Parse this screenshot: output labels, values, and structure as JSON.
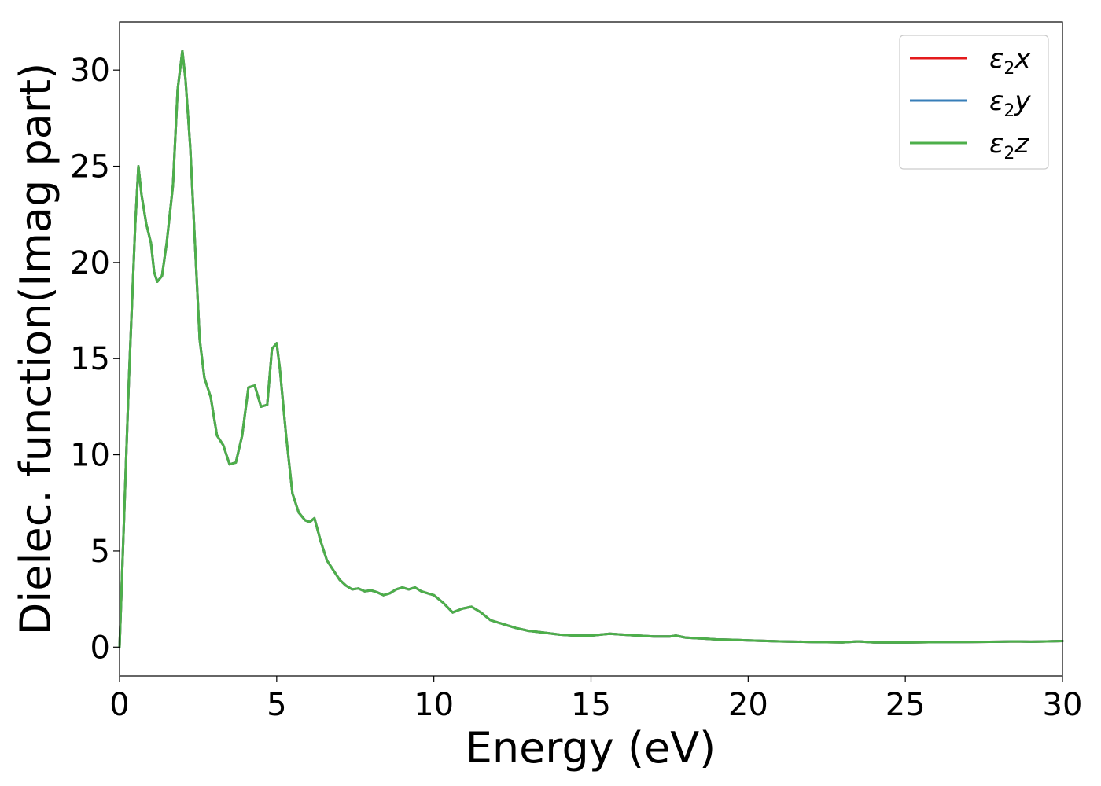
{
  "chart_data": {
    "type": "line",
    "xlabel": "Energy (eV)",
    "ylabel": "Dielec. function(Imag part)",
    "xlim": [
      0,
      30
    ],
    "ylim": [
      -1.5,
      32.5
    ],
    "xticks": [
      0,
      5,
      10,
      15,
      20,
      25,
      30
    ],
    "yticks": [
      0,
      5,
      10,
      15,
      20,
      25,
      30
    ],
    "grid": false,
    "legend_position": "top-right",
    "legend": [
      {
        "name": "ε₂x",
        "base": "ε",
        "sub": "2",
        "var": "x",
        "color": "#e41a1c"
      },
      {
        "name": "ε₂y",
        "base": "ε",
        "sub": "2",
        "var": "y",
        "color": "#377eb8"
      },
      {
        "name": "ε₂z",
        "base": "ε",
        "sub": "2",
        "var": "z",
        "color": "#4daf4a"
      }
    ],
    "x": [
      0,
      0.3,
      0.5,
      0.6,
      0.7,
      0.85,
      1.0,
      1.1,
      1.2,
      1.35,
      1.5,
      1.7,
      1.85,
      2.0,
      2.1,
      2.25,
      2.4,
      2.55,
      2.7,
      2.9,
      3.1,
      3.3,
      3.5,
      3.7,
      3.9,
      4.1,
      4.3,
      4.5,
      4.7,
      4.85,
      5.0,
      5.1,
      5.3,
      5.5,
      5.7,
      5.9,
      6.05,
      6.2,
      6.4,
      6.6,
      6.8,
      7.0,
      7.2,
      7.4,
      7.6,
      7.8,
      8.0,
      8.2,
      8.4,
      8.6,
      8.8,
      9.0,
      9.2,
      9.4,
      9.6,
      9.8,
      10.0,
      10.3,
      10.6,
      10.9,
      11.2,
      11.5,
      11.8,
      12.2,
      12.6,
      13.0,
      13.5,
      14.0,
      14.5,
      15.0,
      15.3,
      15.6,
      16.0,
      16.5,
      17.0,
      17.5,
      17.7,
      18.0,
      18.5,
      19.0,
      19.5,
      20.0,
      21.0,
      22.0,
      23.0,
      23.5,
      24.0,
      25.0,
      26.0,
      27.0,
      28.0,
      28.5,
      29.0,
      29.5,
      30.0
    ],
    "series": [
      {
        "name": "ε₂x",
        "color": "#e41a1c",
        "values": [
          0,
          14,
          22,
          25,
          23.5,
          22,
          21,
          19.5,
          19,
          19.3,
          21,
          24,
          29,
          31,
          29.5,
          26,
          21,
          16,
          14,
          13,
          11,
          10.5,
          9.5,
          9.6,
          11,
          13.5,
          13.6,
          12.5,
          12.6,
          15.5,
          15.8,
          14.5,
          11,
          8,
          7,
          6.6,
          6.5,
          6.7,
          5.5,
          4.5,
          4.0,
          3.5,
          3.2,
          3.0,
          3.05,
          2.9,
          2.95,
          2.85,
          2.7,
          2.8,
          3.0,
          3.1,
          3.0,
          3.1,
          2.9,
          2.8,
          2.7,
          2.3,
          1.8,
          2.0,
          2.1,
          1.8,
          1.4,
          1.2,
          1.0,
          0.85,
          0.75,
          0.65,
          0.6,
          0.6,
          0.65,
          0.7,
          0.65,
          0.6,
          0.55,
          0.55,
          0.6,
          0.5,
          0.45,
          0.4,
          0.38,
          0.35,
          0.3,
          0.27,
          0.25,
          0.3,
          0.25,
          0.24,
          0.26,
          0.27,
          0.28,
          0.3,
          0.28,
          0.3,
          0.32
        ]
      },
      {
        "name": "ε₂y",
        "color": "#377eb8",
        "values": [
          0,
          14,
          22,
          25,
          23.5,
          22,
          21,
          19.5,
          19,
          19.3,
          21,
          24,
          29,
          31,
          29.5,
          26,
          21,
          16,
          14,
          13,
          11,
          10.5,
          9.5,
          9.6,
          11,
          13.5,
          13.6,
          12.5,
          12.6,
          15.5,
          15.8,
          14.5,
          11,
          8,
          7,
          6.6,
          6.5,
          6.7,
          5.5,
          4.5,
          4.0,
          3.5,
          3.2,
          3.0,
          3.05,
          2.9,
          2.95,
          2.85,
          2.7,
          2.8,
          3.0,
          3.1,
          3.0,
          3.1,
          2.9,
          2.8,
          2.7,
          2.3,
          1.8,
          2.0,
          2.1,
          1.8,
          1.4,
          1.2,
          1.0,
          0.85,
          0.75,
          0.65,
          0.6,
          0.6,
          0.65,
          0.7,
          0.65,
          0.6,
          0.55,
          0.55,
          0.6,
          0.5,
          0.45,
          0.4,
          0.38,
          0.35,
          0.3,
          0.27,
          0.25,
          0.3,
          0.25,
          0.24,
          0.26,
          0.27,
          0.28,
          0.3,
          0.28,
          0.3,
          0.32
        ]
      },
      {
        "name": "ε₂z",
        "color": "#4daf4a",
        "values": [
          0,
          14,
          22,
          25,
          23.5,
          22,
          21,
          19.5,
          19,
          19.3,
          21,
          24,
          29,
          31,
          29.5,
          26,
          21,
          16,
          14,
          13,
          11,
          10.5,
          9.5,
          9.6,
          11,
          13.5,
          13.6,
          12.5,
          12.6,
          15.5,
          15.8,
          14.5,
          11,
          8,
          7,
          6.6,
          6.5,
          6.7,
          5.5,
          4.5,
          4.0,
          3.5,
          3.2,
          3.0,
          3.05,
          2.9,
          2.95,
          2.85,
          2.7,
          2.8,
          3.0,
          3.1,
          3.0,
          3.1,
          2.9,
          2.8,
          2.7,
          2.3,
          1.8,
          2.0,
          2.1,
          1.8,
          1.4,
          1.2,
          1.0,
          0.85,
          0.75,
          0.65,
          0.6,
          0.6,
          0.65,
          0.7,
          0.65,
          0.6,
          0.55,
          0.55,
          0.6,
          0.5,
          0.45,
          0.4,
          0.38,
          0.35,
          0.3,
          0.27,
          0.25,
          0.3,
          0.25,
          0.24,
          0.26,
          0.27,
          0.28,
          0.3,
          0.28,
          0.3,
          0.32
        ]
      }
    ]
  }
}
